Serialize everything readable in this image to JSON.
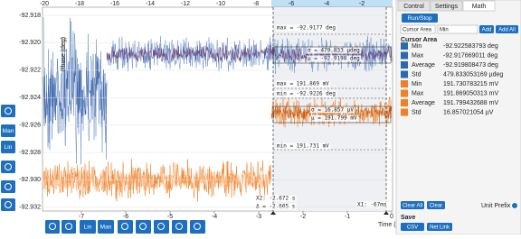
{
  "plot": {
    "y_label": "Phase (deg)",
    "x_label": "Time (s)",
    "top_ticks": [
      "-20",
      "-18",
      "-16",
      "-14",
      "-12",
      "-10",
      "-8",
      "-6",
      "-4",
      "-2"
    ],
    "bottom_ticks": [
      "-7",
      "-6",
      "-5",
      "-4",
      "-3",
      "-2",
      "-1",
      "0"
    ],
    "y_ticks": [
      "-92.918",
      "-92.920",
      "-92.922",
      "-92.924",
      "-92.926",
      "-92.928",
      "-92.930",
      "-92.932"
    ],
    "annotations": {
      "phase_max": "max = -92.9177 deg",
      "phase_sigma": "σ = 479.833 µdeg",
      "phase_mu": "µ = -92.9198 deg",
      "amp_max": "max = 191.869 mV",
      "phase_min": "min = -92.9226 deg",
      "amp_sigma": "σ = 16.857 µV",
      "amp_mu": "µ = 191.799 mV",
      "amp_min": "min = 191.731 mV",
      "x2": "X2: -2.672 s",
      "delta": "Δ = -2.605 s",
      "x1": "X1: -67ms"
    }
  },
  "left_toolbar": {
    "man": "Man",
    "lin": "Lin"
  },
  "bottom_toolbar": {
    "lin": "Lin",
    "man": "Man"
  },
  "panel": {
    "tabs": [
      "Control",
      "Settings",
      "Math"
    ],
    "run_stop": "Run/Stop",
    "dropdown_source": "Cursor Area",
    "dropdown_op": "Min",
    "add": "Add",
    "add_all": "Add All",
    "section": "Cursor Area",
    "rows": [
      [
        "Min",
        "-92.922583793 deg"
      ],
      [
        "Max",
        "-92.917669011 deg"
      ],
      [
        "Average",
        "-92.919808473 deg"
      ],
      [
        "Std",
        "479.833053169 µdeg"
      ],
      [
        "Min",
        "191.730783215 mV"
      ],
      [
        "Max",
        "191.869050313 mV"
      ],
      [
        "Average",
        "191.799432688 mV"
      ],
      [
        "Std",
        "16.857021054 µV"
      ]
    ],
    "clear_all": "Clear All",
    "clear": "Clear",
    "unit_prefix": "Unit Prefix",
    "save": "Save",
    "csv": "CSV",
    "net_link": "Net Link"
  }
}
